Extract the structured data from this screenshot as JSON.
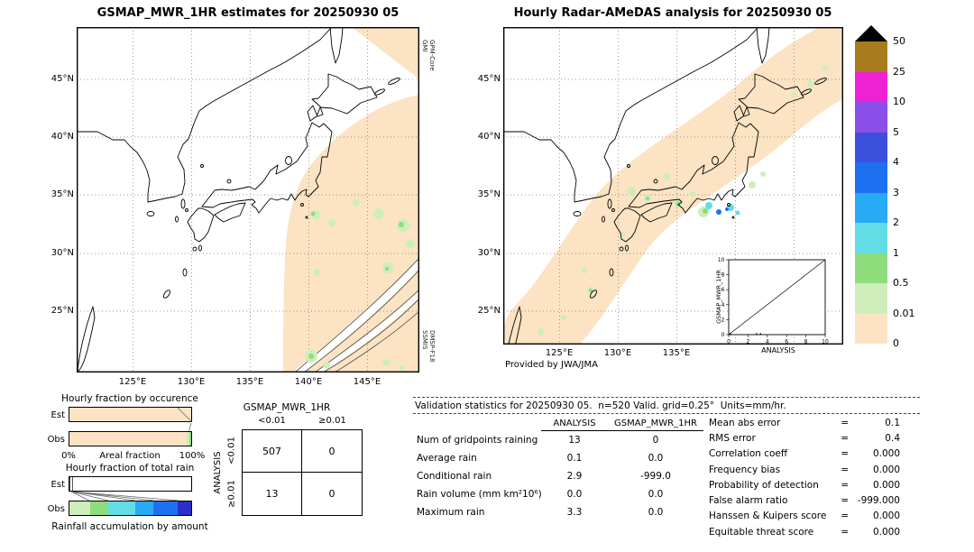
{
  "chart_data": [
    {
      "type": "heatmap",
      "title": "GSMAP_MWR_1HR estimates for 20250930 05",
      "units": "mm/hr",
      "lon_ticks": [
        125,
        130,
        135,
        140,
        145
      ],
      "lat_ticks": [
        45,
        40,
        35,
        30,
        25
      ],
      "color_levels": [
        0,
        0.01,
        0.5,
        1,
        2,
        3,
        4,
        5,
        10,
        25,
        50
      ],
      "sensor_labels": [
        "GPM-Core GMI",
        "DMSP-F18 SSMIS"
      ]
    },
    {
      "type": "heatmap",
      "title": "Hourly Radar-AMeDAS analysis for 20250930 05",
      "units": "mm/hr",
      "lon_ticks": [
        125,
        130,
        135
      ],
      "lat_ticks": [
        45,
        40,
        35,
        30,
        25
      ],
      "color_levels": [
        0,
        0.01,
        0.5,
        1,
        2,
        3,
        4,
        5,
        10,
        25,
        50
      ],
      "credit": "Provided by JWA/JMA"
    },
    {
      "type": "scatter",
      "title": "GSMAP_MWR_1HR vs ANALYSIS",
      "xlabel": "ANALYSIS",
      "ylabel": "GSMAP_MWR_1HR",
      "xlim": [
        0,
        10
      ],
      "ylim": [
        0,
        10
      ],
      "diagonal": true,
      "points": [
        [
          0.1,
          0
        ],
        [
          2.9,
          0
        ],
        [
          3.3,
          0
        ]
      ]
    },
    {
      "type": "table",
      "title": "Contingency table GSMAP_MWR_1HR vs ANALYSIS",
      "col_headers": [
        "<0.01",
        "≥0.01"
      ],
      "row_headers": [
        "<0.01",
        "≥0.01"
      ],
      "values": [
        [
          507,
          0
        ],
        [
          13,
          0
        ]
      ]
    },
    {
      "type": "table",
      "title": "Validation statistics for 20250930 05",
      "n": 520,
      "grid": "0.25°",
      "units": "mm/hr",
      "columns": [
        "ANALYSIS",
        "GSMAP_MWR_1HR"
      ],
      "rows": [
        [
          "Num of gridpoints raining",
          13,
          0
        ],
        [
          "Average rain",
          0.1,
          0.0
        ],
        [
          "Conditional rain",
          2.9,
          -999.0
        ],
        [
          "Rain volume (mm km²10⁶)",
          0.0,
          0.0
        ],
        [
          "Maximum rain",
          3.3,
          0.0
        ]
      ],
      "metrics": {
        "Mean abs error": 0.1,
        "RMS error": 0.4,
        "Correlation coeff": 0.0,
        "Frequency bias": 0.0,
        "Probability of detection": 0.0,
        "False alarm ratio": -999.0,
        "Hanssen & Kuipers score": 0.0,
        "Equitable threat score": 0.0
      }
    }
  ],
  "left_panel": {
    "title": "GSMAP_MWR_1HR estimates for 20250930 05",
    "sensor_top": {
      "line1": "GPM-Core",
      "line2": "GMI"
    },
    "sensor_bottom": {
      "line1": "DMSP-F18",
      "line2": "SSMIS"
    },
    "lat_labels": [
      "45°N",
      "40°N",
      "35°N",
      "30°N",
      "25°N"
    ],
    "lon_labels": [
      "125°E",
      "130°E",
      "135°E",
      "140°E",
      "145°E"
    ]
  },
  "right_panel": {
    "title": "Hourly Radar-AMeDAS analysis for 20250930 05",
    "credit": "Provided by JWA/JMA",
    "lat_labels": [
      "45°N",
      "40°N",
      "35°N",
      "30°N",
      "25°N"
    ],
    "lon_labels": [
      "125°E",
      "130°E",
      "135°E"
    ],
    "inset": {
      "xlabel": "ANALYSIS",
      "ylabel": "GSMAP_MWR_1HR",
      "ticks": [
        "0",
        "2",
        "4",
        "6",
        "8",
        "10"
      ]
    }
  },
  "colorbar": {
    "labels": [
      "50",
      "25",
      "10",
      "5",
      "4",
      "3",
      "2",
      "1",
      "0.5",
      "0.01",
      "0"
    ],
    "segment_colors": [
      "#a87c1e",
      "#ee22d2",
      "#8a4fe8",
      "#3b50dd",
      "#1d71f0",
      "#28aaf5",
      "#62dde5",
      "#8fdc7d",
      "#cdeebb",
      "#fbe3c3"
    ],
    "overflow_color": "#000000"
  },
  "occurrence": {
    "title": "Hourly fraction by occurence",
    "row_labels": [
      "Est",
      "Obs"
    ],
    "axis": {
      "left": "0%",
      "center": "Areal fraction",
      "right": "100%"
    },
    "est_segments": [
      {
        "color": "#fbe3c3",
        "frac": 1.0
      }
    ],
    "obs_segments": [
      {
        "color": "#fbe3c3",
        "frac": 0.965
      },
      {
        "color": "#cdeebb",
        "frac": 0.02
      },
      {
        "color": "#8fdc7d",
        "frac": 0.015
      }
    ]
  },
  "total_rain": {
    "title": "Hourly fraction of total rain",
    "row_labels": [
      "Est",
      "Obs"
    ],
    "caption": "Rainfall accumulation by amount",
    "est_segments": [
      {
        "color": "#555555",
        "frac": 0.007
      },
      {
        "color": "#ffffff",
        "frac": 0.005
      },
      {
        "color": "#8fdc7d",
        "frac": 0.006
      },
      {
        "color": "#ffffff",
        "frac": 0.005
      },
      {
        "color": "#555555",
        "frac": 0.005
      },
      {
        "color": "#ffffff",
        "frac": 0.972
      }
    ],
    "obs_segments": [
      {
        "color": "#cdeebb",
        "frac": 0.17
      },
      {
        "color": "#8fdc7d",
        "frac": 0.15
      },
      {
        "color": "#62dde5",
        "frac": 0.22
      },
      {
        "color": "#28aaf5",
        "frac": 0.15
      },
      {
        "color": "#1d71f0",
        "frac": 0.2
      },
      {
        "color": "#2b2fc9",
        "frac": 0.11
      }
    ]
  },
  "contingency": {
    "title": "GSMAP_MWR_1HR",
    "col_headers": [
      "<0.01",
      "≥0.01"
    ],
    "row_headers": [
      "<0.01",
      "≥0.01"
    ],
    "side_label": "ANALYSIS",
    "values": [
      [
        "507",
        "0"
      ],
      [
        "13",
        "0"
      ]
    ]
  },
  "stats": {
    "title": "Validation statistics for 20250930 05.  n=520 Valid. grid=0.25°  Units=mm/hr.",
    "col_headers": [
      "ANALYSIS",
      "GSMAP_MWR_1HR"
    ],
    "rows": [
      {
        "label": "Num of gridpoints raining",
        "analysis": "13",
        "gsmap": "0"
      },
      {
        "label": "Average rain",
        "analysis": "0.1",
        "gsmap": "0.0"
      },
      {
        "label": "Conditional rain",
        "analysis": "2.9",
        "gsmap": "-999.0"
      },
      {
        "label": "Rain volume (mm km²10⁶)",
        "analysis": "0.0",
        "gsmap": "0.0"
      },
      {
        "label": "Maximum rain",
        "analysis": "3.3",
        "gsmap": "0.0"
      }
    ],
    "metrics": [
      {
        "label": "Mean abs error",
        "value": "0.1"
      },
      {
        "label": "RMS error",
        "value": "0.4"
      },
      {
        "label": "Correlation coeff",
        "value": "0.000"
      },
      {
        "label": "Frequency bias",
        "value": "0.000"
      },
      {
        "label": "Probability of detection",
        "value": "0.000"
      },
      {
        "label": "False alarm ratio",
        "value": "-999.000"
      },
      {
        "label": "Hanssen & Kuipers score",
        "value": "0.000"
      },
      {
        "label": "Equitable threat score",
        "value": "0.000"
      }
    ]
  }
}
